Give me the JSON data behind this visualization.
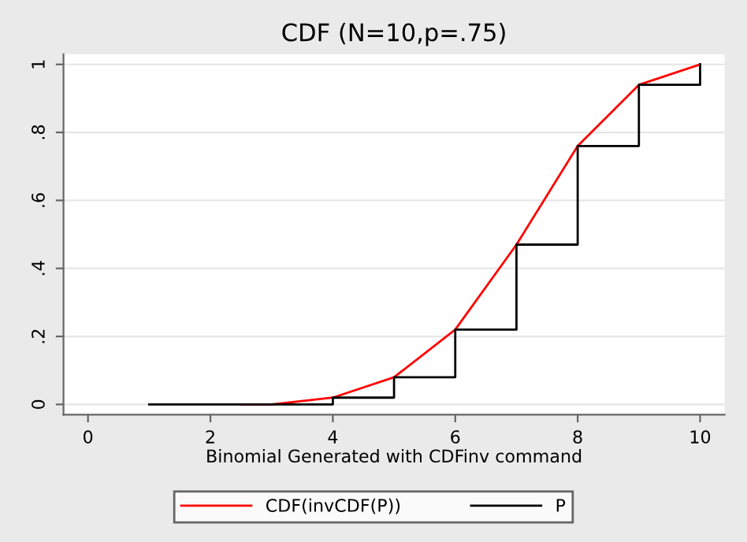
{
  "chart_data": {
    "type": "line",
    "title": "CDF (N=10,p=.75)",
    "xlabel": "Binomial Generated with CDFinv command",
    "series": [
      {
        "name": "CDF(invCDF(P))",
        "color": "#ff0000",
        "x": [
          2.5,
          3,
          4,
          5,
          6,
          7,
          8,
          9,
          10
        ],
        "values": [
          0,
          0,
          0.02,
          0.08,
          0.22,
          0.47,
          0.76,
          0.94,
          1
        ]
      },
      {
        "name": "P",
        "color": "#000000",
        "type": "step",
        "x": [
          1,
          2,
          3,
          4,
          5,
          6,
          7,
          8,
          9,
          10
        ],
        "values": [
          0,
          0,
          0,
          0.02,
          0.08,
          0.22,
          0.47,
          0.76,
          0.94,
          1
        ]
      }
    ],
    "xlim": [
      -0.4,
      10.4
    ],
    "ylim": [
      -0.03,
      1.03
    ],
    "xticks": [
      0,
      2,
      4,
      6,
      8,
      10
    ],
    "yticks": [
      0,
      {
        "value": 0.2,
        "label": ".2"
      },
      {
        "value": 0.4,
        "label": ".4"
      },
      {
        "value": 0.6,
        "label": ".6"
      },
      {
        "value": 0.8,
        "label": ".8"
      },
      1
    ],
    "grid": "y",
    "legend": "bottom",
    "marker": "none",
    "line_style": "solid"
  }
}
